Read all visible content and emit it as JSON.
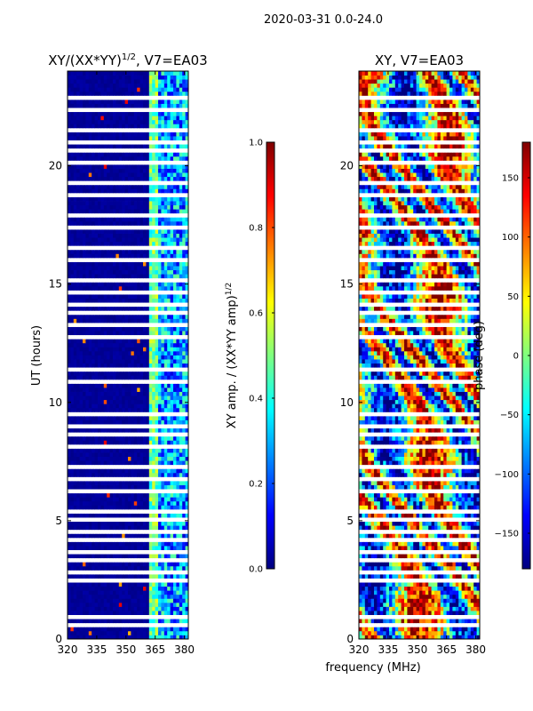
{
  "chart_data": {
    "type": "heatmap",
    "suptitle": "2020-03-31 0.0-24.0",
    "xlabel": "frequency (MHz)",
    "panels": [
      {
        "id": "amp",
        "title_main": "XY/(XX*YY)",
        "title_sup": "1/2",
        "title_tail": ", V7=EA03",
        "ylabel": "UT (hours)",
        "xlim": [
          320,
          382
        ],
        "ylim": [
          0,
          24
        ],
        "xticks": [
          320,
          335,
          350,
          365,
          380
        ],
        "yticks": [
          0,
          5,
          10,
          15,
          20
        ],
        "colorbar": {
          "label_main": "XY amp. / (XX*YY amp)",
          "label_sup": "1/2",
          "range": [
            0.0,
            1.0
          ],
          "ticks": [
            "0.0",
            "0.2",
            "0.4",
            "0.6",
            "0.8",
            "1.0"
          ],
          "colormap": "jet"
        }
      },
      {
        "id": "phase",
        "title_main": "XY, V7=EA03",
        "title_sup": "",
        "title_tail": "",
        "ylabel": "",
        "xlim": [
          320,
          382
        ],
        "ylim": [
          0,
          24
        ],
        "xticks": [
          320,
          335,
          350,
          365,
          380
        ],
        "yticks": [
          0,
          5,
          10,
          15,
          20
        ],
        "colorbar": {
          "label_main": "phase (deg)",
          "label_sup": "",
          "range": [
            -180,
            180
          ],
          "ticks": [
            "−150",
            "−100",
            "−50",
            "0",
            "50",
            "100",
            "150"
          ],
          "tick_values": [
            -150,
            -100,
            -50,
            0,
            50,
            100,
            150
          ],
          "colormap": "jet"
        }
      }
    ],
    "flagged_hours": [
      0.6,
      0.95,
      1.55,
      2.05,
      2.45,
      2.85,
      3.3,
      3.7,
      4.15,
      4.6,
      5.05,
      5.4,
      5.85,
      6.3,
      6.75,
      7.25,
      7.7,
      8.15,
      8.6,
      9.05,
      9.5,
      9.95,
      10.45,
      10.9,
      11.4,
      11.85,
      12.35,
      12.8,
      13.3,
      13.75,
      14.2,
      14.65,
      15.15,
      15.6,
      16.05,
      16.5,
      16.95,
      17.45,
      17.9,
      18.35,
      18.8,
      19.25,
      19.7,
      20.15,
      20.6,
      21.05,
      21.5,
      21.95,
      22.4,
      22.85
    ]
  }
}
